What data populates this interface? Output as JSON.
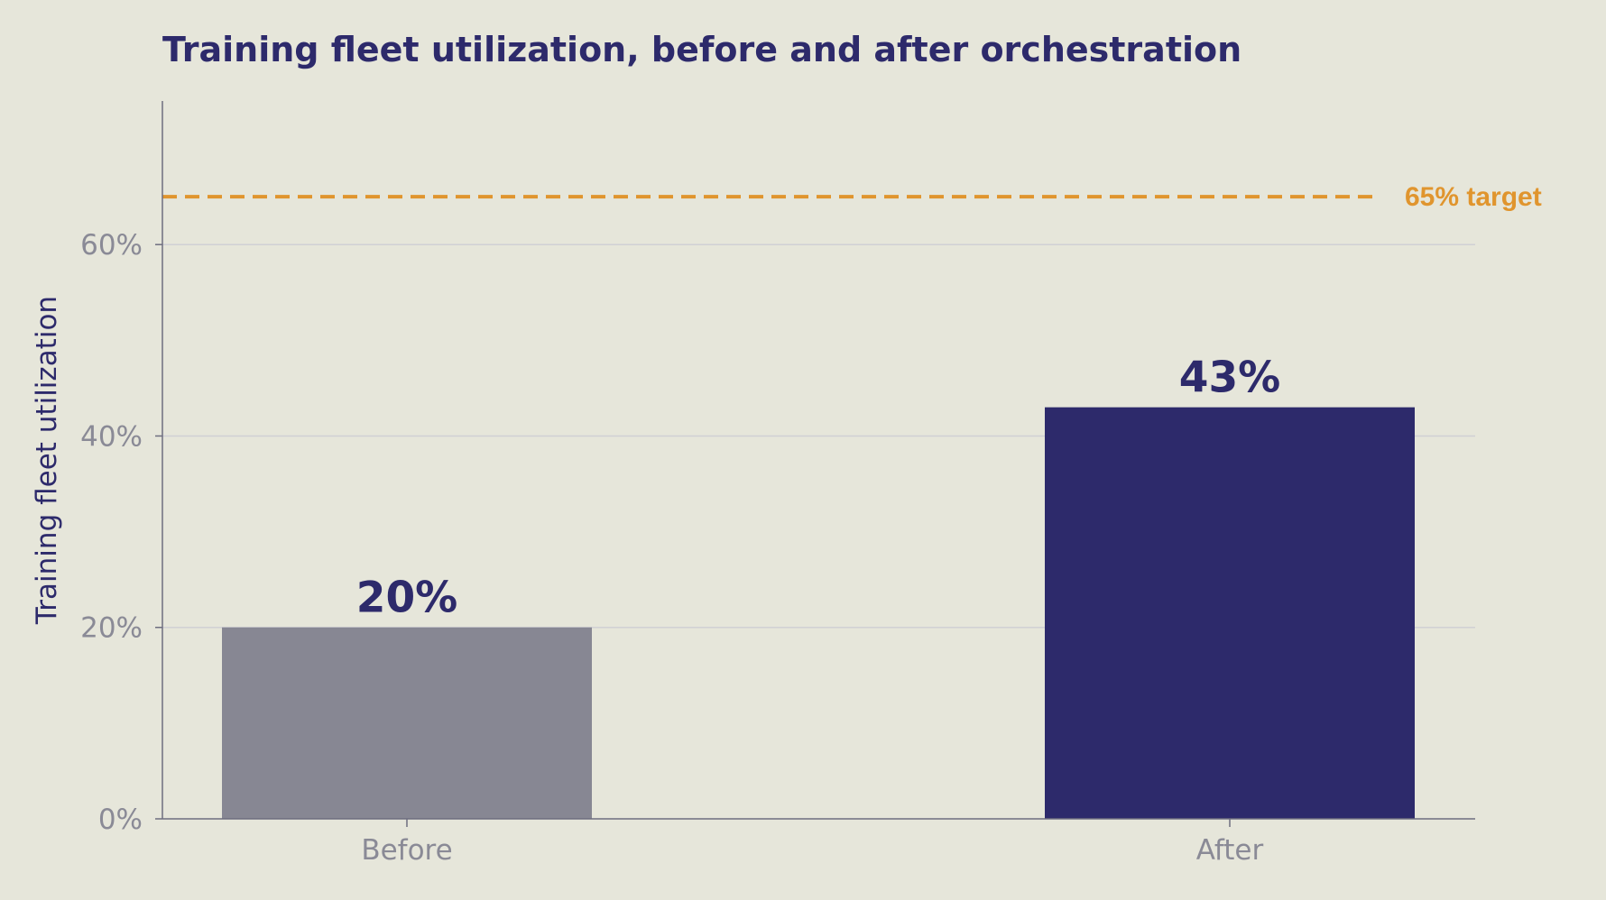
{
  "chart_data": {
    "type": "bar",
    "title": "Training fleet utilization, before and after orchestration",
    "ylabel": "Training fleet utilization",
    "xlabel": "",
    "categories": [
      "Before",
      "After"
    ],
    "values": [
      20,
      43
    ],
    "value_labels": [
      "20%",
      "43%"
    ],
    "ylim": [
      0,
      75
    ],
    "yticks": [
      0,
      20,
      40,
      60
    ],
    "ytick_labels": [
      "0%",
      "20%",
      "40%",
      "60%"
    ],
    "grid": true,
    "target": {
      "value": 65,
      "label": "65% target"
    }
  },
  "colors": {
    "background": "#e6e6da",
    "title": "#2d2a6b",
    "axis": "#6e6e80",
    "tick_label": "#8a8a96",
    "grid": "#d0d0d4",
    "bar_before": "#878793",
    "bar_after": "#2d2a6b",
    "data_label": "#2d2a6b",
    "target": "#e0952e"
  }
}
